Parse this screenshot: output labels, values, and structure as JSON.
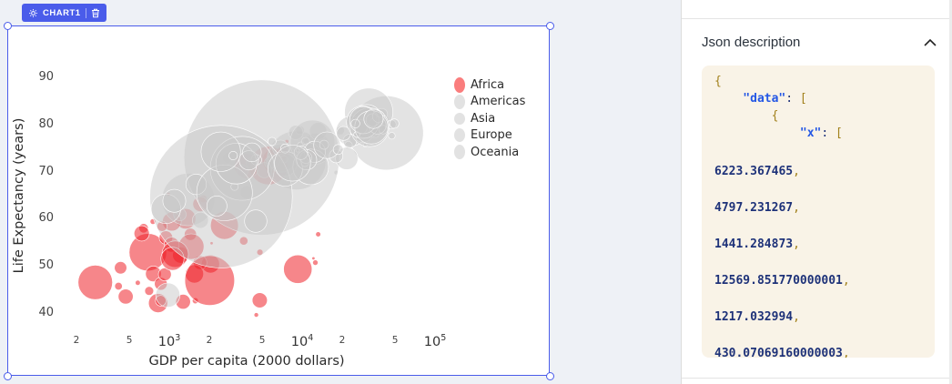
{
  "colors": {
    "accent": "#4a5cea",
    "canvas_bg": "#eef1f6",
    "code_bg": "#f9f3e7",
    "africa_red": "#ee2229",
    "neutral_gray": "#c8c8c8"
  },
  "chart_widget": {
    "badge": {
      "label": "CHART1",
      "gear_icon": "gear",
      "trash_icon": "trash"
    }
  },
  "chart_data": {
    "type": "scatter",
    "subtype": "bubble",
    "x_scale": "log",
    "xlabel": "GDP per capita (2000 dollars)",
    "ylabel": "Life Expectancy (years)",
    "x_range_log10": [
      2.25,
      5.15
    ],
    "y_range": [
      36,
      92
    ],
    "grid": "off",
    "legend_position": "top-right",
    "size_encoding": "population_millions",
    "y_ticks": [
      90,
      80,
      70,
      60,
      50,
      40
    ],
    "x_ticks_minor": [
      {
        "label": "2",
        "value": 200
      },
      {
        "label": "5",
        "value": 500
      },
      {
        "label": "2",
        "value": 2000
      },
      {
        "label": "5",
        "value": 5000
      },
      {
        "label": "2",
        "value": 20000
      },
      {
        "label": "5",
        "value": 50000
      }
    ],
    "x_ticks_major": [
      {
        "base": "10",
        "exp": "3",
        "value": 1000
      },
      {
        "base": "10",
        "exp": "4",
        "value": 10000
      },
      {
        "base": "10",
        "exp": "5",
        "value": 100000
      }
    ],
    "series": [
      {
        "name": "Africa",
        "fill": "#ee2229",
        "fill_opacity": 0.55,
        "legend_color": "#fa7d7d",
        "legend_r": 8.5,
        "points": [
          [
            6223.4,
            72.3,
            33.33
          ],
          [
            4797.2,
            42.7,
            12.42
          ],
          [
            1441.3,
            56.7,
            8.08
          ],
          [
            12569.9,
            50.7,
            1.64
          ],
          [
            1217.0,
            52.3,
            14.33
          ],
          [
            430.1,
            49.6,
            8.39
          ],
          [
            2042.1,
            50.4,
            17.7
          ],
          [
            706.0,
            44.7,
            4.37
          ],
          [
            1704.1,
            50.7,
            10.24
          ],
          [
            986.1,
            65.2,
            0.71
          ],
          [
            277.6,
            46.5,
            64.61
          ],
          [
            3632.6,
            55.3,
            3.8
          ],
          [
            1544.8,
            48.3,
            18.01
          ],
          [
            2082.5,
            54.8,
            0.5
          ],
          [
            5581.2,
            71.3,
            80.26
          ],
          [
            12154.1,
            51.6,
            0.55
          ],
          [
            641.4,
            58.0,
            4.91
          ],
          [
            690.8,
            52.9,
            76.51
          ],
          [
            13206.5,
            56.7,
            1.45
          ],
          [
            752.7,
            59.4,
            1.69
          ],
          [
            1327.6,
            60.0,
            22.87
          ],
          [
            942.7,
            56.0,
            9.95
          ],
          [
            579.2,
            46.4,
            1.47
          ],
          [
            1463.2,
            54.1,
            35.61
          ],
          [
            1569.3,
            42.6,
            2.01
          ],
          [
            414.5,
            45.7,
            3.19
          ],
          [
            12057.5,
            74.0,
            6.04
          ],
          [
            1044.8,
            59.4,
            19.17
          ],
          [
            759.3,
            48.3,
            13.33
          ],
          [
            1042.6,
            54.5,
            12.03
          ],
          [
            1803.2,
            64.2,
            3.27
          ],
          [
            10957.0,
            72.8,
            1.25
          ],
          [
            3820.2,
            71.2,
            33.76
          ],
          [
            823.7,
            42.1,
            19.95
          ],
          [
            4811.1,
            52.9,
            2.06
          ],
          [
            619.7,
            56.9,
            12.89
          ],
          [
            2014.0,
            46.9,
            135.03
          ],
          [
            7670.1,
            76.4,
            0.8
          ],
          [
            863.1,
            46.2,
            8.86
          ],
          [
            1598.4,
            65.5,
            0.2
          ],
          [
            1712.5,
            63.1,
            12.27
          ],
          [
            862.5,
            42.6,
            6.14
          ],
          [
            926.1,
            48.2,
            9.12
          ],
          [
            9269.7,
            49.3,
            44.0
          ],
          [
            2602.4,
            58.6,
            42.29
          ],
          [
            4513.5,
            39.6,
            1.13
          ],
          [
            1107.5,
            52.5,
            38.14
          ],
          [
            883.0,
            58.4,
            5.7
          ],
          [
            7092.9,
            73.9,
            10.28
          ],
          [
            1056.4,
            51.5,
            29.17
          ],
          [
            1271.2,
            42.4,
            11.75
          ],
          [
            469.7,
            43.5,
            12.31
          ]
        ]
      },
      {
        "name": "Americas",
        "fill": "#c8c8c8",
        "fill_opacity": 0.5,
        "legend_color": "#e2e2e2",
        "legend_r": 8,
        "points": [
          [
            12779.4,
            75.3,
            40.3
          ],
          [
            3822.1,
            65.6,
            9.12
          ],
          [
            9065.8,
            72.4,
            190.01
          ],
          [
            36319.2,
            80.7,
            33.39
          ],
          [
            13171.6,
            78.6,
            16.28
          ],
          [
            7006.6,
            72.9,
            44.23
          ],
          [
            9645.1,
            78.8,
            4.13
          ],
          [
            8948.1,
            78.3,
            11.42
          ],
          [
            6025.4,
            72.2,
            9.32
          ],
          [
            6873.3,
            75.0,
            13.76
          ],
          [
            5728.4,
            71.9,
            6.94
          ],
          [
            5186.1,
            70.3,
            12.57
          ],
          [
            1201.6,
            60.9,
            8.5
          ],
          [
            3548.3,
            70.2,
            7.48
          ],
          [
            7320.9,
            72.6,
            2.78
          ],
          [
            11977.6,
            76.2,
            108.7
          ],
          [
            2749.3,
            72.9,
            5.68
          ],
          [
            9809.2,
            75.5,
            3.24
          ],
          [
            4172.8,
            71.8,
            6.67
          ],
          [
            7408.9,
            71.4,
            28.67
          ],
          [
            19328.7,
            78.7,
            3.94
          ],
          [
            18008.5,
            69.8,
            1.06
          ],
          [
            42951.7,
            78.2,
            301.14
          ],
          [
            10611.5,
            76.4,
            3.45
          ],
          [
            11415.8,
            73.7,
            26.08
          ]
        ]
      },
      {
        "name": "Asia",
        "fill": "#c8c8c8",
        "fill_opacity": 0.5,
        "legend_color": "#e2e2e2",
        "legend_r": 6.5,
        "points": [
          [
            974.6,
            43.8,
            31.89
          ],
          [
            29796.0,
            75.6,
            0.71
          ],
          [
            1391.3,
            64.1,
            150.45
          ],
          [
            1713.8,
            59.7,
            14.13
          ],
          [
            4959.1,
            73.0,
            1318.68
          ],
          [
            39725.0,
            82.2,
            6.98
          ],
          [
            2452.2,
            64.7,
            1110.4
          ],
          [
            3540.7,
            70.7,
            223.55
          ],
          [
            11605.7,
            71.0,
            69.45
          ],
          [
            4471.1,
            59.5,
            27.5
          ],
          [
            25523.3,
            80.7,
            6.43
          ],
          [
            31656.1,
            82.6,
            127.47
          ],
          [
            4519.5,
            72.5,
            6.05
          ],
          [
            1593.1,
            67.3,
            23.3
          ],
          [
            23348.1,
            78.6,
            49.04
          ],
          [
            47307.0,
            77.6,
            2.51
          ],
          [
            10461.1,
            72.0,
            3.92
          ],
          [
            12451.7,
            74.2,
            24.82
          ],
          [
            3095.8,
            66.8,
            2.87
          ],
          [
            944.0,
            62.1,
            47.76
          ],
          [
            1091.4,
            63.8,
            28.9
          ],
          [
            22316.2,
            75.6,
            3.2
          ],
          [
            2606.0,
            65.5,
            169.27
          ],
          [
            3190.5,
            71.7,
            91.08
          ],
          [
            21654.8,
            72.8,
            27.6
          ],
          [
            47143.2,
            80.0,
            4.55
          ],
          [
            3970.1,
            72.4,
            20.38
          ],
          [
            4184.6,
            74.1,
            19.31
          ],
          [
            28718.3,
            78.4,
            23.17
          ],
          [
            7458.4,
            70.6,
            65.07
          ],
          [
            2441.6,
            74.2,
            85.26
          ],
          [
            3025.3,
            73.4,
            4.02
          ],
          [
            2280.8,
            62.7,
            22.21
          ]
        ]
      },
      {
        "name": "Europe",
        "fill": "#c8c8c8",
        "fill_opacity": 0.5,
        "legend_color": "#e2e2e2",
        "legend_r": 7.5,
        "points": [
          [
            5937.0,
            76.4,
            3.6
          ],
          [
            36126.5,
            79.8,
            8.2
          ],
          [
            33692.6,
            79.4,
            10.39
          ],
          [
            7446.3,
            74.9,
            4.55
          ],
          [
            10680.8,
            73.0,
            7.32
          ],
          [
            14619.2,
            75.7,
            4.49
          ],
          [
            22833.3,
            76.5,
            10.23
          ],
          [
            35278.4,
            78.3,
            5.47
          ],
          [
            33207.1,
            79.3,
            5.24
          ],
          [
            30470.0,
            80.7,
            61.08
          ],
          [
            32170.4,
            79.4,
            82.4
          ],
          [
            27538.4,
            79.5,
            10.71
          ],
          [
            18008.9,
            73.3,
            9.96
          ],
          [
            36180.8,
            81.8,
            0.3
          ],
          [
            40676.0,
            78.9,
            4.11
          ],
          [
            28569.7,
            80.5,
            58.15
          ],
          [
            9253.9,
            74.5,
            0.68
          ],
          [
            36797.9,
            79.8,
            16.57
          ],
          [
            49357.2,
            80.2,
            4.63
          ],
          [
            15389.9,
            75.6,
            38.52
          ],
          [
            20509.6,
            78.1,
            10.64
          ],
          [
            10808.5,
            72.5,
            22.28
          ],
          [
            9786.5,
            74.0,
            10.15
          ],
          [
            18678.3,
            74.7,
            5.45
          ],
          [
            25768.3,
            77.9,
            2.01
          ],
          [
            28821.1,
            80.9,
            40.45
          ],
          [
            33859.7,
            80.9,
            9.03
          ],
          [
            37506.4,
            81.7,
            7.59
          ],
          [
            8458.3,
            71.8,
            71.16
          ],
          [
            33203.3,
            79.4,
            60.78
          ]
        ]
      },
      {
        "name": "Oceania",
        "fill": "#c8c8c8",
        "fill_opacity": 0.5,
        "legend_color": "#e2e2e2",
        "legend_r": 8,
        "points": [
          [
            34435.4,
            81.2,
            20.43
          ],
          [
            25185.0,
            80.2,
            4.12
          ]
        ]
      }
    ]
  },
  "panel": {
    "section_title": "Json description",
    "collapse_icon": "chevron-up",
    "code": {
      "header_lines": [
        {
          "ind": 0,
          "tokens": [
            {
              "c": "p",
              "t": "{"
            }
          ]
        },
        {
          "ind": 4,
          "tokens": [
            {
              "c": "k",
              "t": "\"data\""
            },
            {
              "c": "pl",
              "t": ": "
            },
            {
              "c": "p",
              "t": "["
            }
          ]
        },
        {
          "ind": 8,
          "tokens": [
            {
              "c": "p",
              "t": "{"
            }
          ]
        },
        {
          "ind": 12,
          "tokens": [
            {
              "c": "k",
              "t": "\"x\""
            },
            {
              "c": "pl",
              "t": ": "
            },
            {
              "c": "p",
              "t": "["
            }
          ]
        }
      ],
      "x_values": [
        "6223.367465",
        "4797.231267",
        "1441.284873",
        "12569.851770000001",
        "1217.032994",
        "430.07069160000003"
      ]
    }
  }
}
